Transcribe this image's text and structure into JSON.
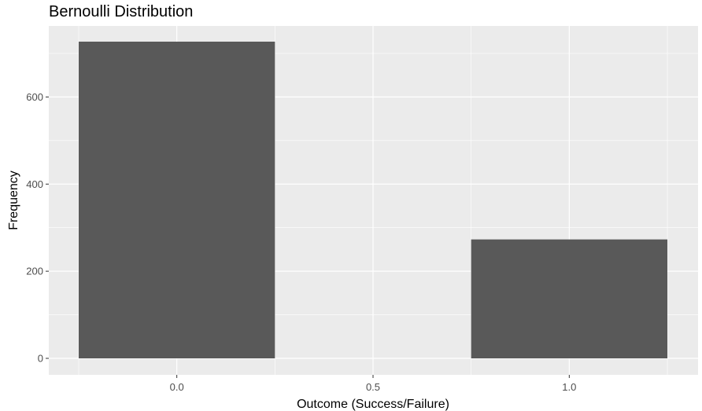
{
  "chart_data": {
    "type": "bar",
    "title": "Bernoulli Distribution",
    "xlabel": "Outcome (Success/Failure)",
    "ylabel": "Frequency",
    "bars": [
      {
        "x": 0.0,
        "value": 727
      },
      {
        "x": 1.0,
        "value": 273
      }
    ],
    "bar_width": 0.5,
    "xlim": [
      -0.25,
      1.25
    ],
    "ylim": [
      0,
      727
    ],
    "x_ticks": [
      {
        "value": 0.0,
        "label": "0.0"
      },
      {
        "value": 0.5,
        "label": "0.5"
      },
      {
        "value": 1.0,
        "label": "1.0"
      }
    ],
    "y_ticks": [
      {
        "value": 0,
        "label": "0"
      },
      {
        "value": 200,
        "label": "200"
      },
      {
        "value": 400,
        "label": "400"
      },
      {
        "value": 600,
        "label": "600"
      }
    ],
    "grid": true,
    "legend": "none",
    "colors": {
      "bar": "#595959",
      "panel": "#ebebeb",
      "grid_major": "#ffffff",
      "tick_text": "#4d4d4d"
    }
  }
}
